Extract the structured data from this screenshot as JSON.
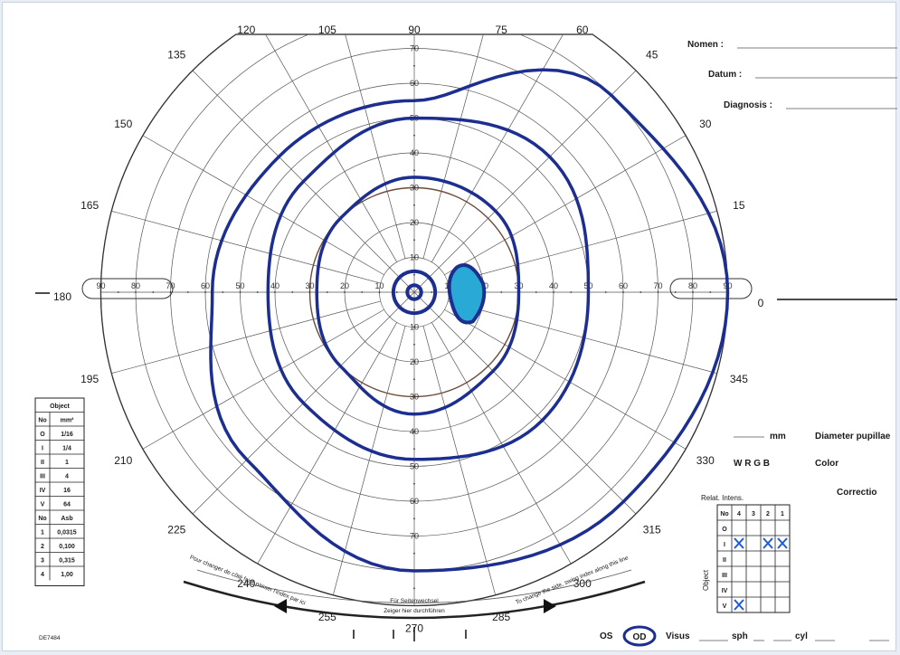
{
  "colors": {
    "isopter": "#1c2e8f",
    "scotoma_fill": "#29a9d6",
    "grid": "#555555",
    "frame": "#222222"
  },
  "chart_data": {
    "type": "diagram",
    "kind": "goldmann-visual-field-chart",
    "meridians_deg": [
      "0",
      "15",
      "30",
      "45",
      "60",
      "75",
      "90",
      "105",
      "120",
      "135",
      "150",
      "165",
      "180",
      "195",
      "210",
      "225",
      "240",
      "255",
      "270",
      "285",
      "300",
      "315",
      "330",
      "345"
    ],
    "eccentricities": [
      "10",
      "20",
      "30",
      "40",
      "50",
      "60",
      "70",
      "80",
      "90"
    ],
    "eccentricity_rings_deg": [
      10,
      20,
      30,
      40,
      50,
      60,
      70,
      80,
      90
    ],
    "isopters": [
      {
        "extent_deg": {
          "0": 90,
          "45": 80,
          "90": 55,
          "135": 55,
          "180": 58,
          "225": 68,
          "270": 80,
          "315": 85
        }
      },
      {
        "extent_deg": {
          "0": 50,
          "45": 55,
          "90": 50,
          "135": 45,
          "180": 42,
          "225": 45,
          "270": 48,
          "315": 52
        }
      },
      {
        "extent_deg": {
          "0": 30,
          "45": 33,
          "90": 33,
          "135": 30,
          "180": 28,
          "225": 30,
          "270": 35,
          "315": 32
        }
      },
      {
        "extent_deg": {
          "0": 6,
          "90": 6,
          "180": 6,
          "270": 6
        }
      },
      {
        "extent_deg": {
          "0": 2,
          "90": 2,
          "180": 2,
          "270": 2
        }
      }
    ],
    "blind_spot": {
      "center_meridian_deg": 0,
      "center_ecc_deg": 15,
      "width_deg": 6,
      "height_deg": 8
    }
  },
  "form": {
    "nomen_label": "Nomen :",
    "datum_label": "Datum :",
    "diagnosis_label": "Diagnosis :",
    "mm_label": "mm",
    "diameter_pupillae_label": "Diameter pupillae",
    "wrgb_label": "W  R  G  B",
    "color_label": "Color",
    "correctio_label": "Correctio",
    "os_label": "OS",
    "od_label": "OD",
    "visus_label": "Visus",
    "sph_label": "sph",
    "cyl_label": "cyl"
  },
  "object_table": {
    "title": "Object",
    "headers": [
      "No",
      "mm²"
    ],
    "rows": [
      [
        "O",
        "1/16"
      ],
      [
        "I",
        "1/4"
      ],
      [
        "II",
        "1"
      ],
      [
        "III",
        "4"
      ],
      [
        "IV",
        "16"
      ],
      [
        "V",
        "64"
      ]
    ],
    "headers2": [
      "No",
      "Asb"
    ],
    "rows2": [
      [
        "1",
        "0,0315"
      ],
      [
        "2",
        "0,100"
      ],
      [
        "3",
        "0,315"
      ],
      [
        "4",
        "1,00"
      ]
    ]
  },
  "relat_intens": {
    "title": "Relat. Intens.",
    "columns": [
      "No",
      "4",
      "3",
      "2",
      "1"
    ],
    "rows": [
      "O",
      "I",
      "II",
      "III",
      "IV",
      "V"
    ],
    "side_label": "Object",
    "checked": [
      [
        1,
        1
      ],
      [
        1,
        3
      ],
      [
        1,
        4
      ],
      [
        5,
        1
      ]
    ]
  },
  "bottom_notes": {
    "center_line1": "Für Seitenwechsel",
    "center_line2": "Zeiger hier durchführen",
    "left_note": "Pour changer de côté faire passer l'index par ici",
    "right_note": "To change the side, swing index along this line",
    "code": "DE7484"
  }
}
